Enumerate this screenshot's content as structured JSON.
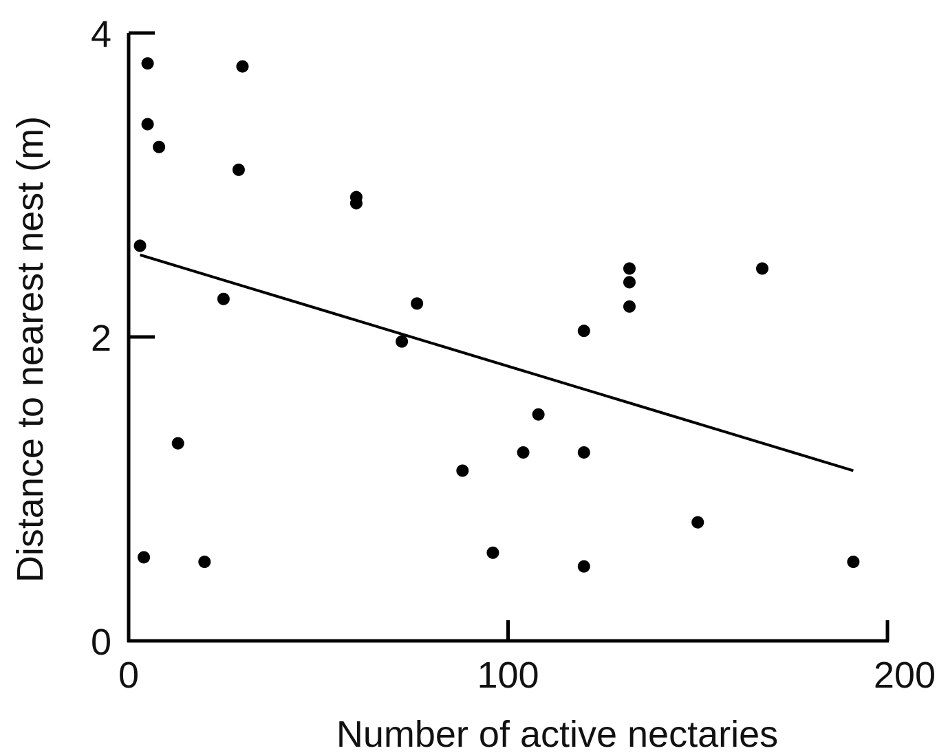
{
  "chart_data": {
    "type": "scatter",
    "title": "",
    "xlabel": "Number of active nectaries",
    "ylabel": "Distance to nearest nest (m)",
    "xlim": [
      0,
      200
    ],
    "ylim": [
      0,
      4
    ],
    "x_ticks": [
      0,
      100,
      200
    ],
    "y_ticks": [
      0,
      2,
      4
    ],
    "x_tick_labels": [
      "0",
      "100",
      "200"
    ],
    "y_tick_labels": [
      "0",
      "2",
      "4"
    ],
    "grid": false,
    "legend": "none",
    "colors": {
      "marks": "#000000",
      "axis": "#000000"
    },
    "series": [
      {
        "points": [
          [
            5,
            3.8
          ],
          [
            5,
            3.4
          ],
          [
            8,
            3.25
          ],
          [
            3,
            2.6
          ],
          [
            4,
            0.55
          ],
          [
            13,
            1.3
          ],
          [
            20,
            0.52
          ],
          [
            25,
            2.25
          ],
          [
            29,
            3.1
          ],
          [
            30,
            3.78
          ],
          [
            60,
            2.88
          ],
          [
            60,
            2.92
          ],
          [
            72,
            1.97
          ],
          [
            76,
            2.22
          ],
          [
            88,
            1.12
          ],
          [
            96,
            0.58
          ],
          [
            104,
            1.24
          ],
          [
            108,
            1.49
          ],
          [
            120,
            2.04
          ],
          [
            120,
            1.24
          ],
          [
            120,
            0.49
          ],
          [
            132,
            2.45
          ],
          [
            132,
            2.36
          ],
          [
            132,
            2.2
          ],
          [
            150,
            0.78
          ],
          [
            167,
            2.45
          ],
          [
            191,
            0.52
          ]
        ]
      }
    ],
    "trendline": {
      "x": [
        3,
        191
      ],
      "y": [
        2.54,
        1.12
      ]
    }
  }
}
